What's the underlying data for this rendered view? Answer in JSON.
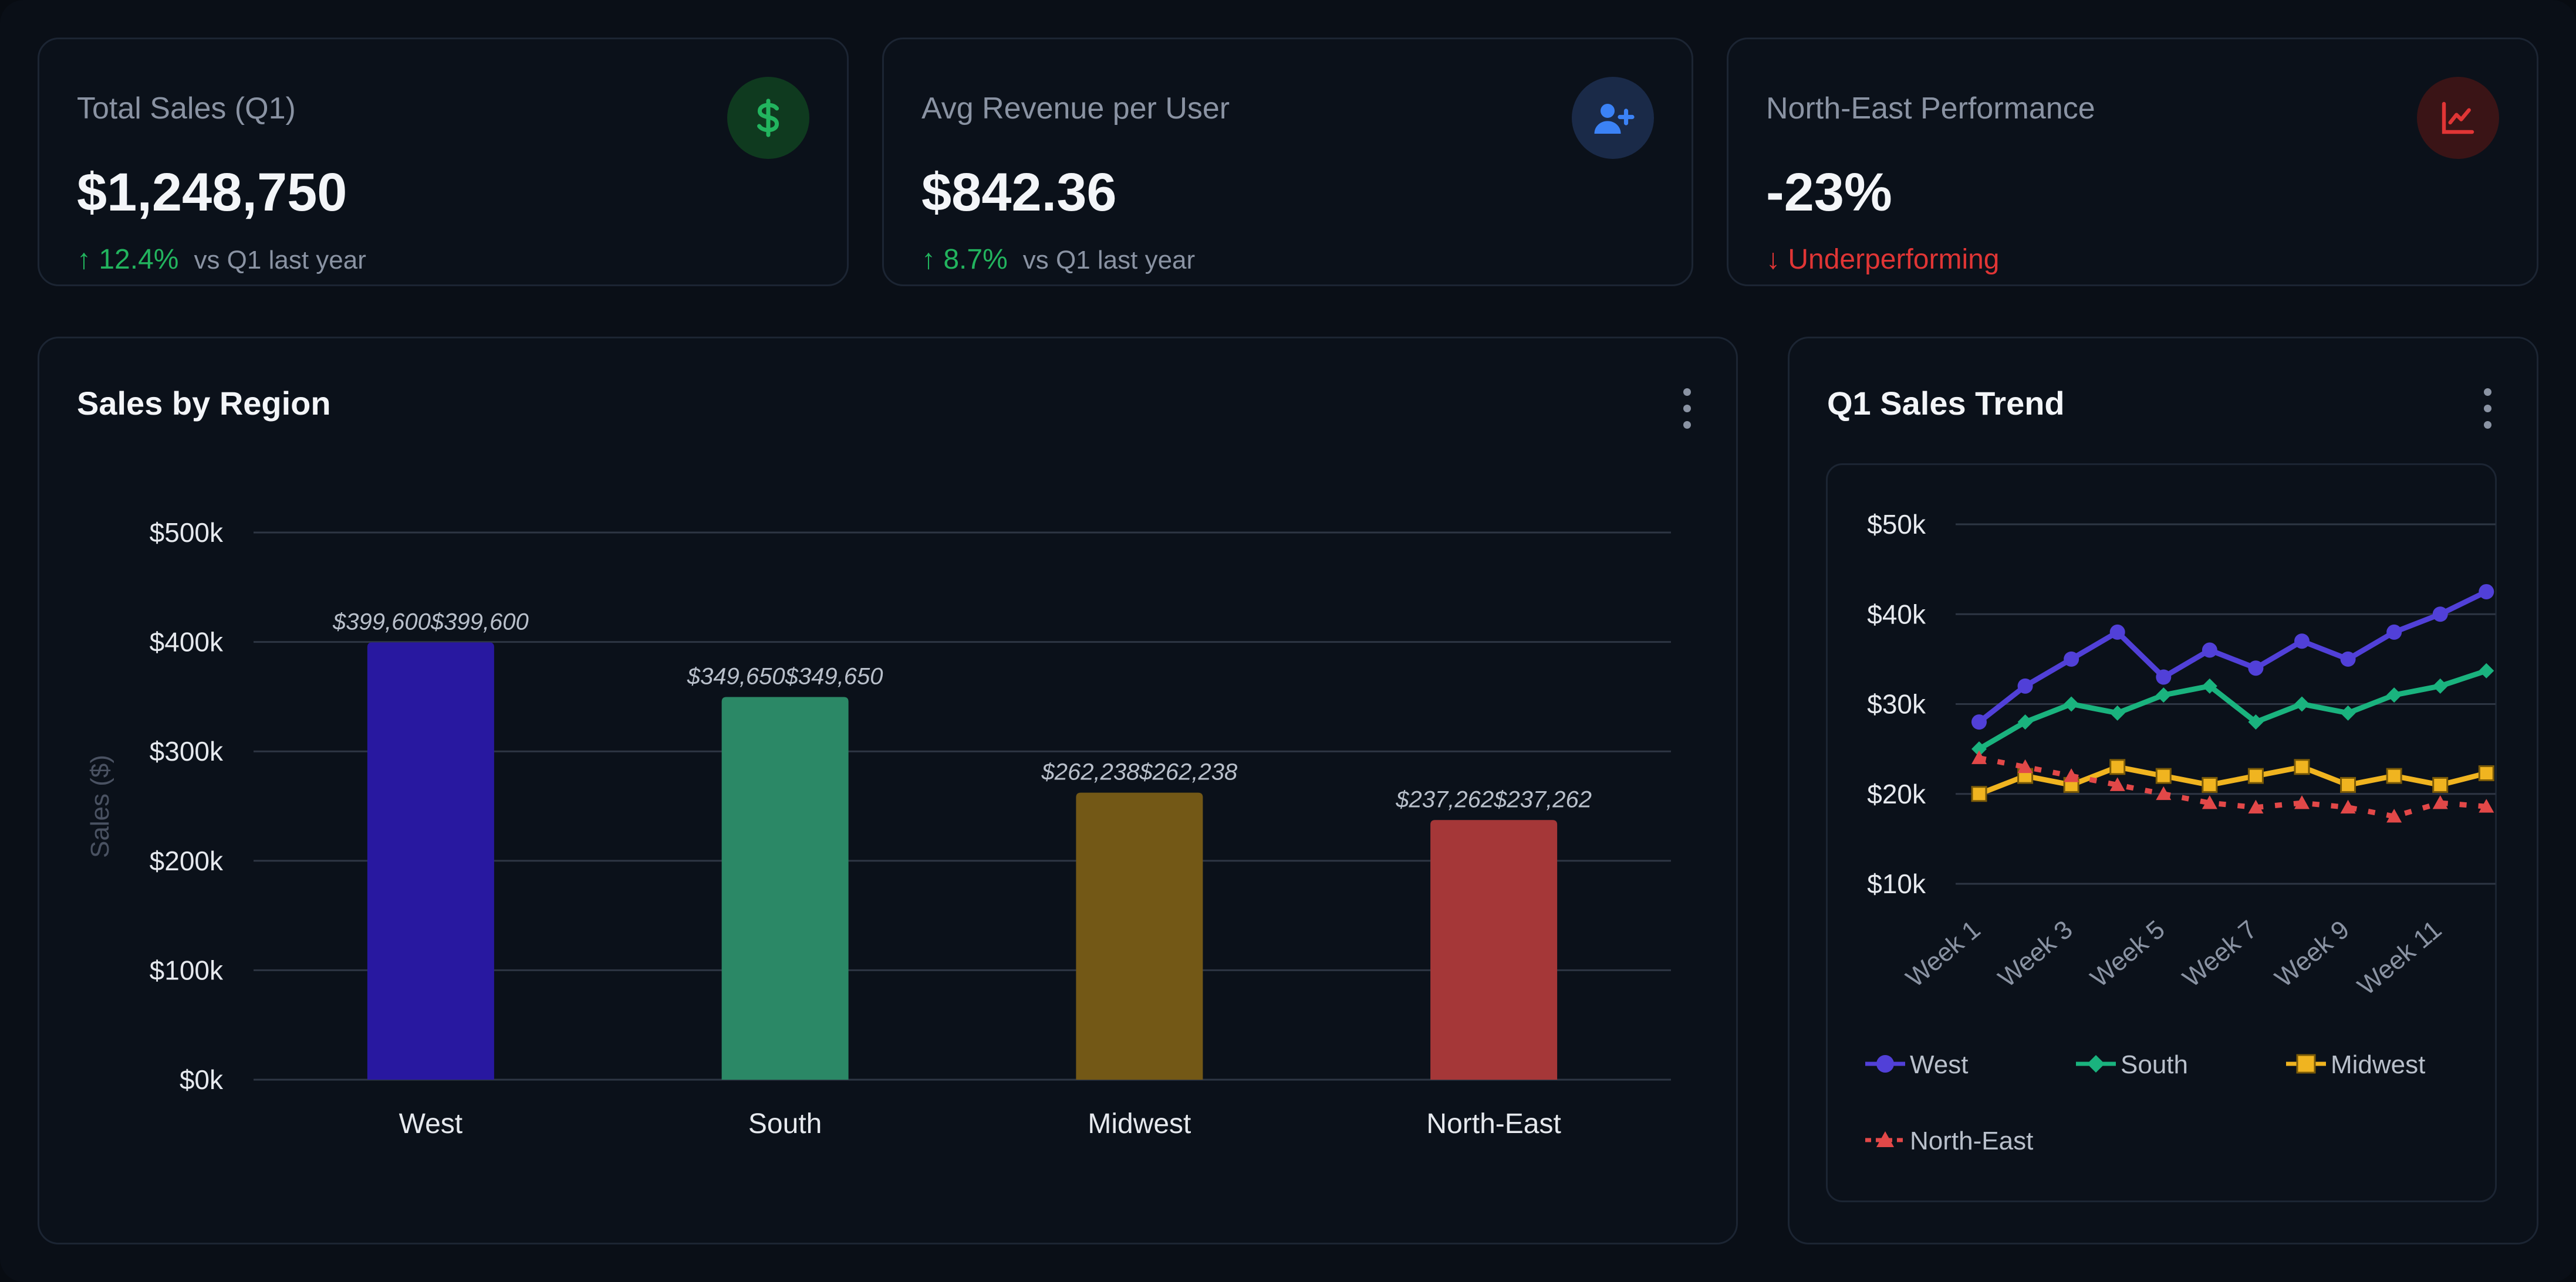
{
  "kpis": [
    {
      "title": "Total Sales (Q1)",
      "value": "$1,248,750",
      "delta": "↑ 12.4%",
      "delta_note": "vs Q1 last year",
      "icon": "dollar-icon",
      "trend": "up",
      "icon_bg": "#0f3a1f",
      "icon_color": "#22b45e"
    },
    {
      "title": "Avg Revenue per User",
      "value": "$842.36",
      "delta": "↑ 8.7%",
      "delta_note": "vs Q1 last year",
      "icon": "user-plus-icon",
      "trend": "up",
      "icon_bg": "#1a2a48",
      "icon_color": "#3b82f6"
    },
    {
      "title": "North-East Performance",
      "value": "-23%",
      "delta": "↓ Underperforming",
      "delta_note": "",
      "icon": "chart-line-icon",
      "trend": "down",
      "icon_bg": "#3a1416",
      "icon_color": "#e03535"
    }
  ],
  "region_panel": {
    "title": "Sales by Region"
  },
  "trend_panel": {
    "title": "Q1 Sales Trend"
  },
  "colors": {
    "up": "#22b45e",
    "down": "#e03535",
    "grid": "#2e3644",
    "tick": "#e6e9ee",
    "muted": "#8a93a3"
  },
  "chart_data": [
    {
      "type": "bar",
      "title": "Sales by Region",
      "categories": [
        "West",
        "South",
        "Midwest",
        "North-East"
      ],
      "values": [
        399600,
        349650,
        262238,
        237262
      ],
      "data_labels": [
        "$399,600$399,600",
        "$349,650$349,650",
        "$262,238$262,238",
        "$237,262$237,262"
      ],
      "colors": [
        "#2818a0",
        "#2b8866",
        "#735816",
        "#a53738"
      ],
      "ylabel": "Sales ($)",
      "ylim": [
        0,
        500000
      ],
      "yticks": [
        0,
        100000,
        200000,
        300000,
        400000,
        500000
      ],
      "ytick_labels": [
        "$0k",
        "$100k",
        "$200k",
        "$300k",
        "$400k",
        "$500k"
      ],
      "grid": true
    },
    {
      "type": "line",
      "title": "Q1 Sales Trend",
      "x": [
        1,
        2,
        3,
        4,
        5,
        6,
        7,
        8,
        9,
        10,
        11,
        12
      ],
      "xtick_labels": [
        "Week 1",
        "Week 3",
        "Week 5",
        "Week 7",
        "Week 9",
        "Week 11"
      ],
      "xtick_positions": [
        1,
        3,
        5,
        7,
        9,
        11
      ],
      "ylim": [
        10000,
        50000
      ],
      "yticks": [
        10000,
        20000,
        30000,
        40000,
        50000
      ],
      "ytick_labels": [
        "$10k",
        "$20k",
        "$30k",
        "$40k",
        "$50k"
      ],
      "grid": true,
      "legend_position": "bottom",
      "series": [
        {
          "name": "West",
          "color": "#5140d8",
          "marker": "circle",
          "dashed": false,
          "values": [
            28000,
            32000,
            35000,
            38000,
            33000,
            36000,
            34000,
            37000,
            35000,
            38000,
            40000,
            42500
          ]
        },
        {
          "name": "South",
          "color": "#1ab37e",
          "marker": "diamond",
          "dashed": false,
          "values": [
            25000,
            28000,
            30000,
            29000,
            31000,
            32000,
            28000,
            30000,
            29000,
            31000,
            32000,
            33700
          ]
        },
        {
          "name": "Midwest",
          "color": "#f0b420",
          "marker": "square",
          "dashed": false,
          "values": [
            20000,
            22000,
            21000,
            23000,
            22000,
            21000,
            22000,
            23000,
            21000,
            22000,
            21000,
            22300
          ]
        },
        {
          "name": "North-East",
          "color": "#e24848",
          "marker": "triangle",
          "dashed": true,
          "values": [
            24000,
            23000,
            22000,
            21000,
            20000,
            19000,
            18500,
            19000,
            18500,
            17500,
            19000,
            18600
          ]
        }
      ]
    }
  ]
}
